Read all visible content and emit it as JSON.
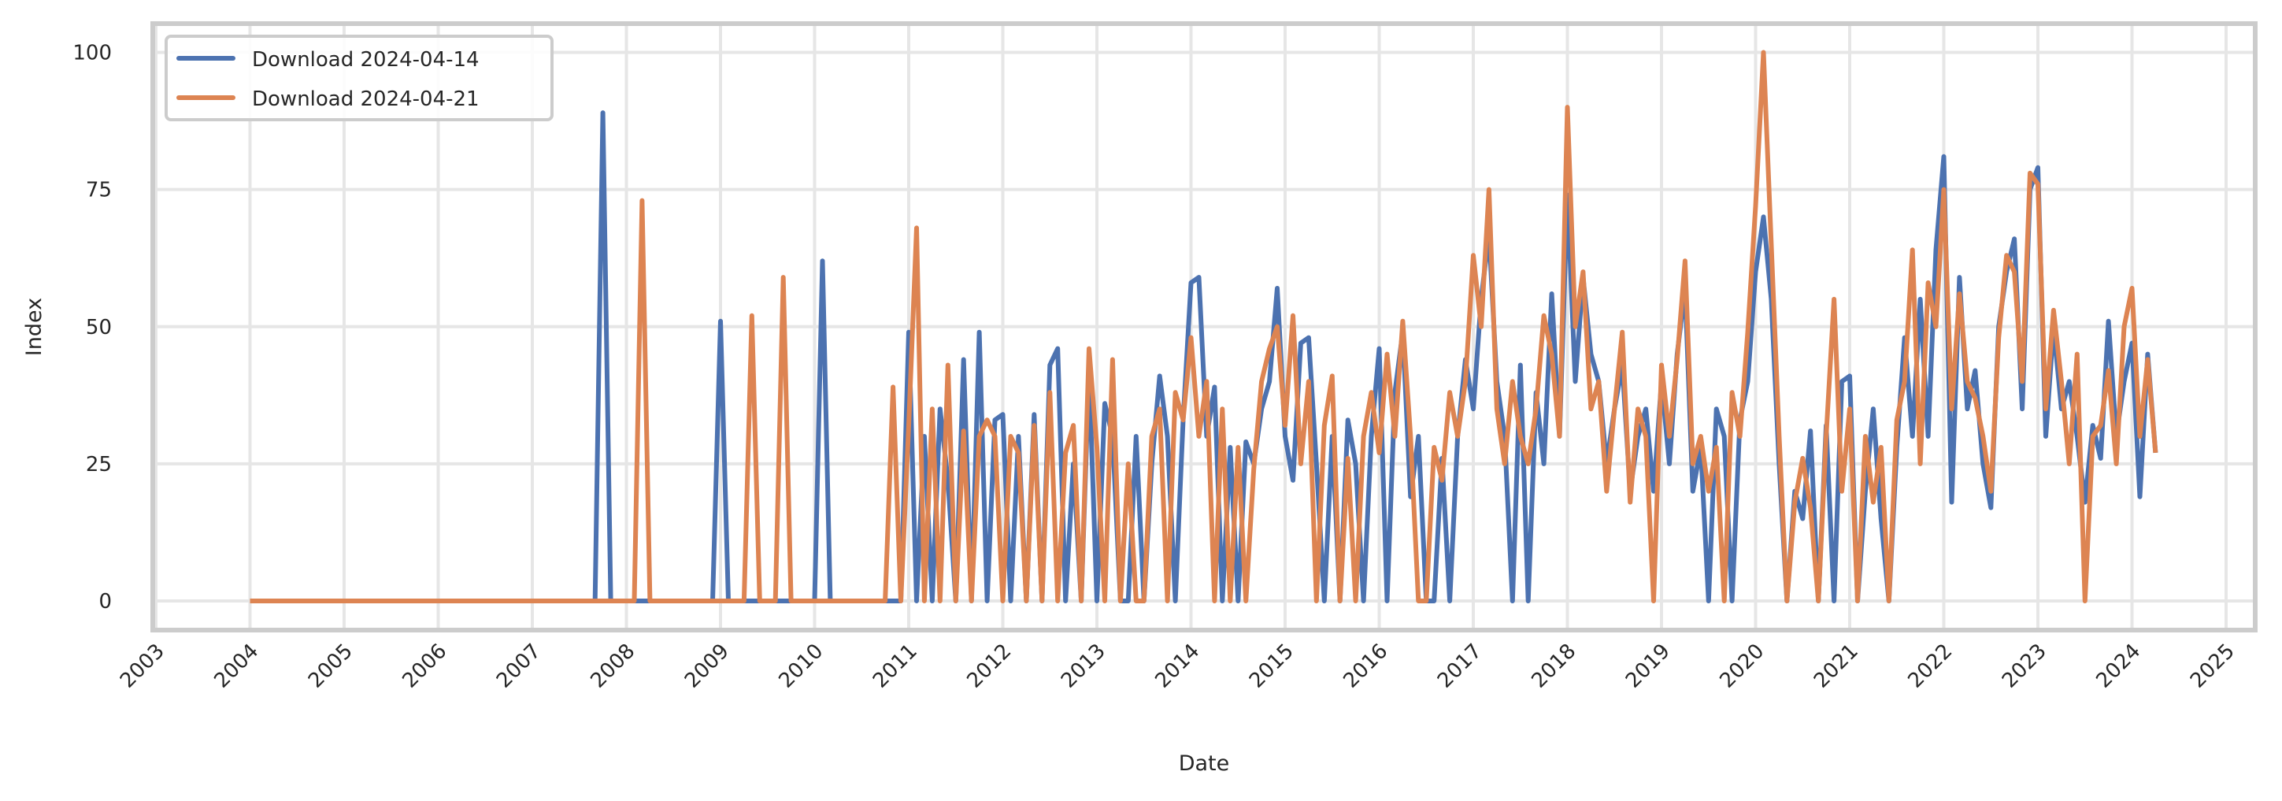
{
  "chart_data": {
    "type": "line",
    "title": "",
    "xlabel": "Date",
    "ylabel": "Index",
    "xlim": [
      2003,
      2025
    ],
    "ylim": [
      -5,
      105
    ],
    "x_ticks": [
      "2003",
      "2004",
      "2005",
      "2006",
      "2007",
      "2008",
      "2009",
      "2010",
      "2011",
      "2012",
      "2013",
      "2014",
      "2015",
      "2016",
      "2017",
      "2018",
      "2019",
      "2020",
      "2021",
      "2022",
      "2023",
      "2024",
      "2025"
    ],
    "y_ticks": [
      "0",
      "25",
      "50",
      "75",
      "100"
    ],
    "y_tick_values": [
      0,
      25,
      50,
      75,
      100
    ],
    "grid": true,
    "legend_position": "top-left",
    "start": "2004-01",
    "frequency": "monthly",
    "end": "2024-04",
    "series": [
      {
        "name": "Download 2024-04-14",
        "color": "#4c72b0",
        "values": [
          0,
          0,
          0,
          0,
          0,
          0,
          0,
          0,
          0,
          0,
          0,
          0,
          0,
          0,
          0,
          0,
          0,
          0,
          0,
          0,
          0,
          0,
          0,
          0,
          0,
          0,
          0,
          0,
          0,
          0,
          0,
          0,
          0,
          0,
          0,
          0,
          0,
          0,
          0,
          0,
          0,
          0,
          0,
          0,
          0,
          89,
          0,
          0,
          0,
          0,
          0,
          0,
          0,
          0,
          0,
          0,
          0,
          0,
          0,
          0,
          51,
          0,
          0,
          0,
          0,
          0,
          0,
          0,
          0,
          0,
          0,
          0,
          0,
          62,
          0,
          0,
          0,
          0,
          0,
          0,
          0,
          0,
          0,
          0,
          49,
          0,
          30,
          0,
          35,
          22,
          0,
          44,
          0,
          49,
          0,
          33,
          34,
          0,
          30,
          0,
          34,
          0,
          43,
          46,
          0,
          25,
          0,
          42,
          0,
          36,
          30,
          0,
          0,
          30,
          0,
          25,
          41,
          30,
          0,
          33,
          58,
          59,
          30,
          39,
          0,
          28,
          0,
          29,
          25,
          35,
          40,
          57,
          30,
          22,
          47,
          48,
          25,
          0,
          30,
          0,
          33,
          25,
          0,
          30,
          46,
          0,
          38,
          49,
          19,
          30,
          0,
          0,
          26,
          0,
          30,
          44,
          35,
          55,
          67,
          40,
          30,
          0,
          43,
          0,
          38,
          25,
          56,
          30,
          74,
          40,
          59,
          45,
          40,
          25,
          35,
          43,
          20,
          30,
          35,
          20,
          40,
          25,
          45,
          57,
          20,
          28,
          0,
          35,
          30,
          0,
          33,
          40,
          60,
          70,
          55,
          25,
          0,
          20,
          15,
          31,
          0,
          32,
          0,
          40,
          41,
          0,
          20,
          35,
          15,
          0,
          28,
          48,
          30,
          55,
          30,
          64,
          81,
          18,
          59,
          35,
          42,
          25,
          17,
          50,
          60,
          66,
          35,
          75,
          79,
          30,
          50,
          35,
          40,
          30,
          18,
          32,
          26,
          51,
          30,
          40,
          47,
          19,
          45,
          27
        ]
      },
      {
        "name": "Download 2024-04-21",
        "color": "#dd8452",
        "values": [
          0,
          0,
          0,
          0,
          0,
          0,
          0,
          0,
          0,
          0,
          0,
          0,
          0,
          0,
          0,
          0,
          0,
          0,
          0,
          0,
          0,
          0,
          0,
          0,
          0,
          0,
          0,
          0,
          0,
          0,
          0,
          0,
          0,
          0,
          0,
          0,
          0,
          0,
          0,
          0,
          0,
          0,
          0,
          0,
          0,
          0,
          0,
          0,
          0,
          0,
          73,
          0,
          0,
          0,
          0,
          0,
          0,
          0,
          0,
          0,
          0,
          0,
          0,
          0,
          52,
          0,
          0,
          0,
          59,
          0,
          0,
          0,
          0,
          0,
          0,
          0,
          0,
          0,
          0,
          0,
          0,
          0,
          39,
          0,
          32,
          68,
          0,
          35,
          0,
          43,
          0,
          31,
          0,
          30,
          33,
          30,
          0,
          30,
          27,
          0,
          32,
          0,
          38,
          0,
          27,
          32,
          0,
          46,
          28,
          0,
          44,
          0,
          25,
          0,
          0,
          30,
          35,
          0,
          38,
          33,
          48,
          30,
          40,
          0,
          35,
          0,
          28,
          0,
          24,
          40,
          46,
          50,
          32,
          52,
          25,
          40,
          0,
          32,
          41,
          0,
          26,
          0,
          30,
          38,
          27,
          45,
          30,
          51,
          30,
          0,
          0,
          28,
          22,
          38,
          30,
          40,
          63,
          50,
          75,
          35,
          25,
          40,
          30,
          25,
          35,
          52,
          45,
          30,
          90,
          50,
          60,
          35,
          40,
          20,
          35,
          49,
          18,
          35,
          30,
          0,
          43,
          30,
          44,
          62,
          25,
          30,
          20,
          28,
          0,
          38,
          30,
          49,
          72,
          100,
          65,
          30,
          0,
          18,
          26,
          17,
          0,
          30,
          55,
          20,
          35,
          0,
          30,
          18,
          28,
          0,
          33,
          40,
          64,
          25,
          58,
          50,
          75,
          35,
          56,
          40,
          37,
          30,
          20,
          48,
          63,
          60,
          40,
          78,
          76,
          35,
          53,
          40,
          25,
          45,
          0,
          30,
          32,
          42,
          25,
          50,
          57,
          30,
          44,
          27
        ]
      }
    ]
  }
}
